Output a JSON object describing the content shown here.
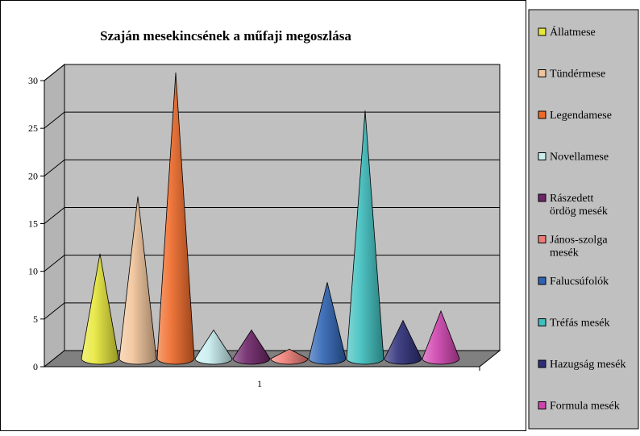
{
  "chart_data": {
    "type": "bar",
    "style": "3d-cone",
    "title": "Szaján mesekincsének a műfaji megoszlása",
    "categories": [
      "1"
    ],
    "ylim": [
      0,
      30
    ],
    "y_ticks": [
      "0",
      "5",
      "10",
      "15",
      "20",
      "25",
      "30"
    ],
    "grid": true,
    "legend_position": "right",
    "series": [
      {
        "name": "Állatmese",
        "value": 11,
        "color": "#e8e83a"
      },
      {
        "name": "Tündérmese",
        "value": 17,
        "color": "#f2c49a"
      },
      {
        "name": "Legendamese",
        "value": 30,
        "color": "#ef6a28"
      },
      {
        "name": "Novellamese",
        "value": 3,
        "color": "#c8eef0"
      },
      {
        "name": "Rászedett ördög mesék",
        "value": 3,
        "color": "#6e2569"
      },
      {
        "name": "János-szolga mesék",
        "value": 1,
        "color": "#ef7d76"
      },
      {
        "name": "Falucsúfolók",
        "value": 8,
        "color": "#2f64b4"
      },
      {
        "name": "Tréfás mesék",
        "value": 26,
        "color": "#3fc0c0"
      },
      {
        "name": "Hazugság mesék",
        "value": 4,
        "color": "#2e2f79"
      },
      {
        "name": "Formula mesék",
        "value": 5,
        "color": "#d044b0"
      }
    ]
  }
}
